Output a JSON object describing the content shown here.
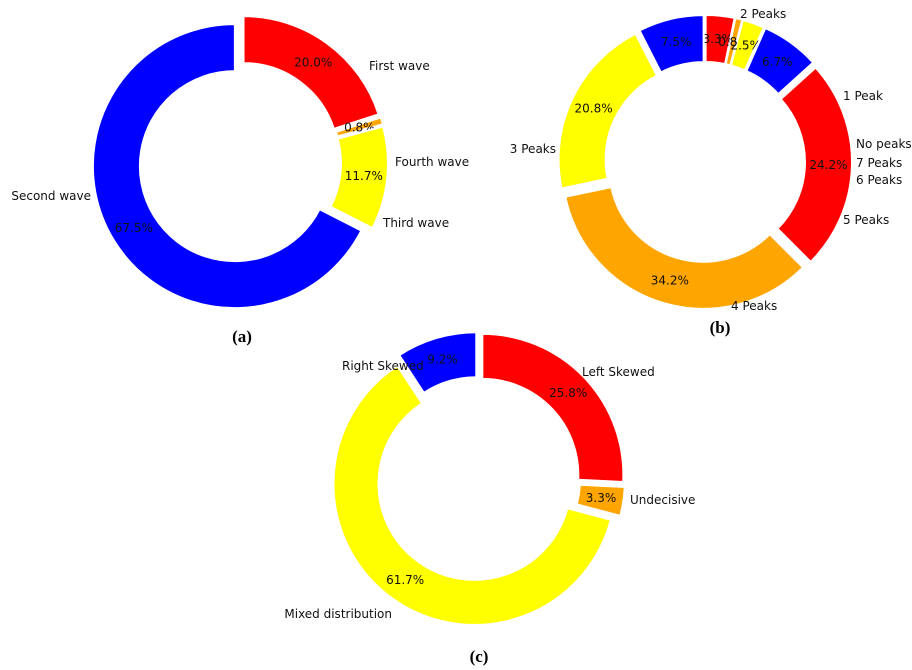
{
  "chart_data": [
    {
      "type": "pie",
      "style": "donut",
      "panel_label": "(a)",
      "slices": [
        {
          "label": "First wave",
          "value": 20.0,
          "pct_text": "20.0%",
          "color": "#ff0000"
        },
        {
          "label": "Fourth wave",
          "value": 0.8,
          "pct_text": "0.8%",
          "color": "#ffa500"
        },
        {
          "label": "Third wave",
          "value": 11.7,
          "pct_text": "11.7%",
          "color": "#ffff00"
        },
        {
          "label": "Second wave",
          "value": 67.5,
          "pct_text": "67.5%",
          "color": "#0000ff"
        }
      ]
    },
    {
      "type": "pie",
      "style": "donut",
      "panel_label": "(b)",
      "slices": [
        {
          "label": "No peaks",
          "value": 3.3,
          "pct_text": "3.3%",
          "color": "#ff0000"
        },
        {
          "label": "7 Peaks",
          "value": 0.8,
          "pct_text": "0.8%",
          "color": "#ffa500"
        },
        {
          "label": "6 Peaks",
          "value": 2.5,
          "pct_text": "2.5%",
          "color": "#ffff00"
        },
        {
          "label": "5 Peaks",
          "value": 6.7,
          "pct_text": "6.7%",
          "color": "#0000ff"
        },
        {
          "label": "4 Peaks",
          "value": 24.2,
          "pct_text": "24.2%",
          "color": "#ff0000"
        },
        {
          "label": "3 Peaks",
          "value": 34.2,
          "pct_text": "34.2%",
          "color": "#ffa500"
        },
        {
          "label": "2 Peaks",
          "value": 20.8,
          "pct_text": "20.8%",
          "color": "#ffff00"
        },
        {
          "label": "1 Peak",
          "value": 7.5,
          "pct_text": "7.5%",
          "color": "#0000ff"
        }
      ]
    },
    {
      "type": "pie",
      "style": "donut",
      "panel_label": "(c)",
      "slices": [
        {
          "label": "Left Skewed",
          "value": 25.8,
          "pct_text": "25.8%",
          "color": "#ff0000"
        },
        {
          "label": "Undecisive",
          "value": 3.3,
          "pct_text": "3.3%",
          "color": "#ffa500"
        },
        {
          "label": "Mixed distribution",
          "value": 61.7,
          "pct_text": "61.7%",
          "color": "#ffff00"
        },
        {
          "label": "Right Skewed",
          "value": 9.2,
          "pct_text": "9.2%",
          "color": "#0000ff"
        }
      ]
    }
  ]
}
